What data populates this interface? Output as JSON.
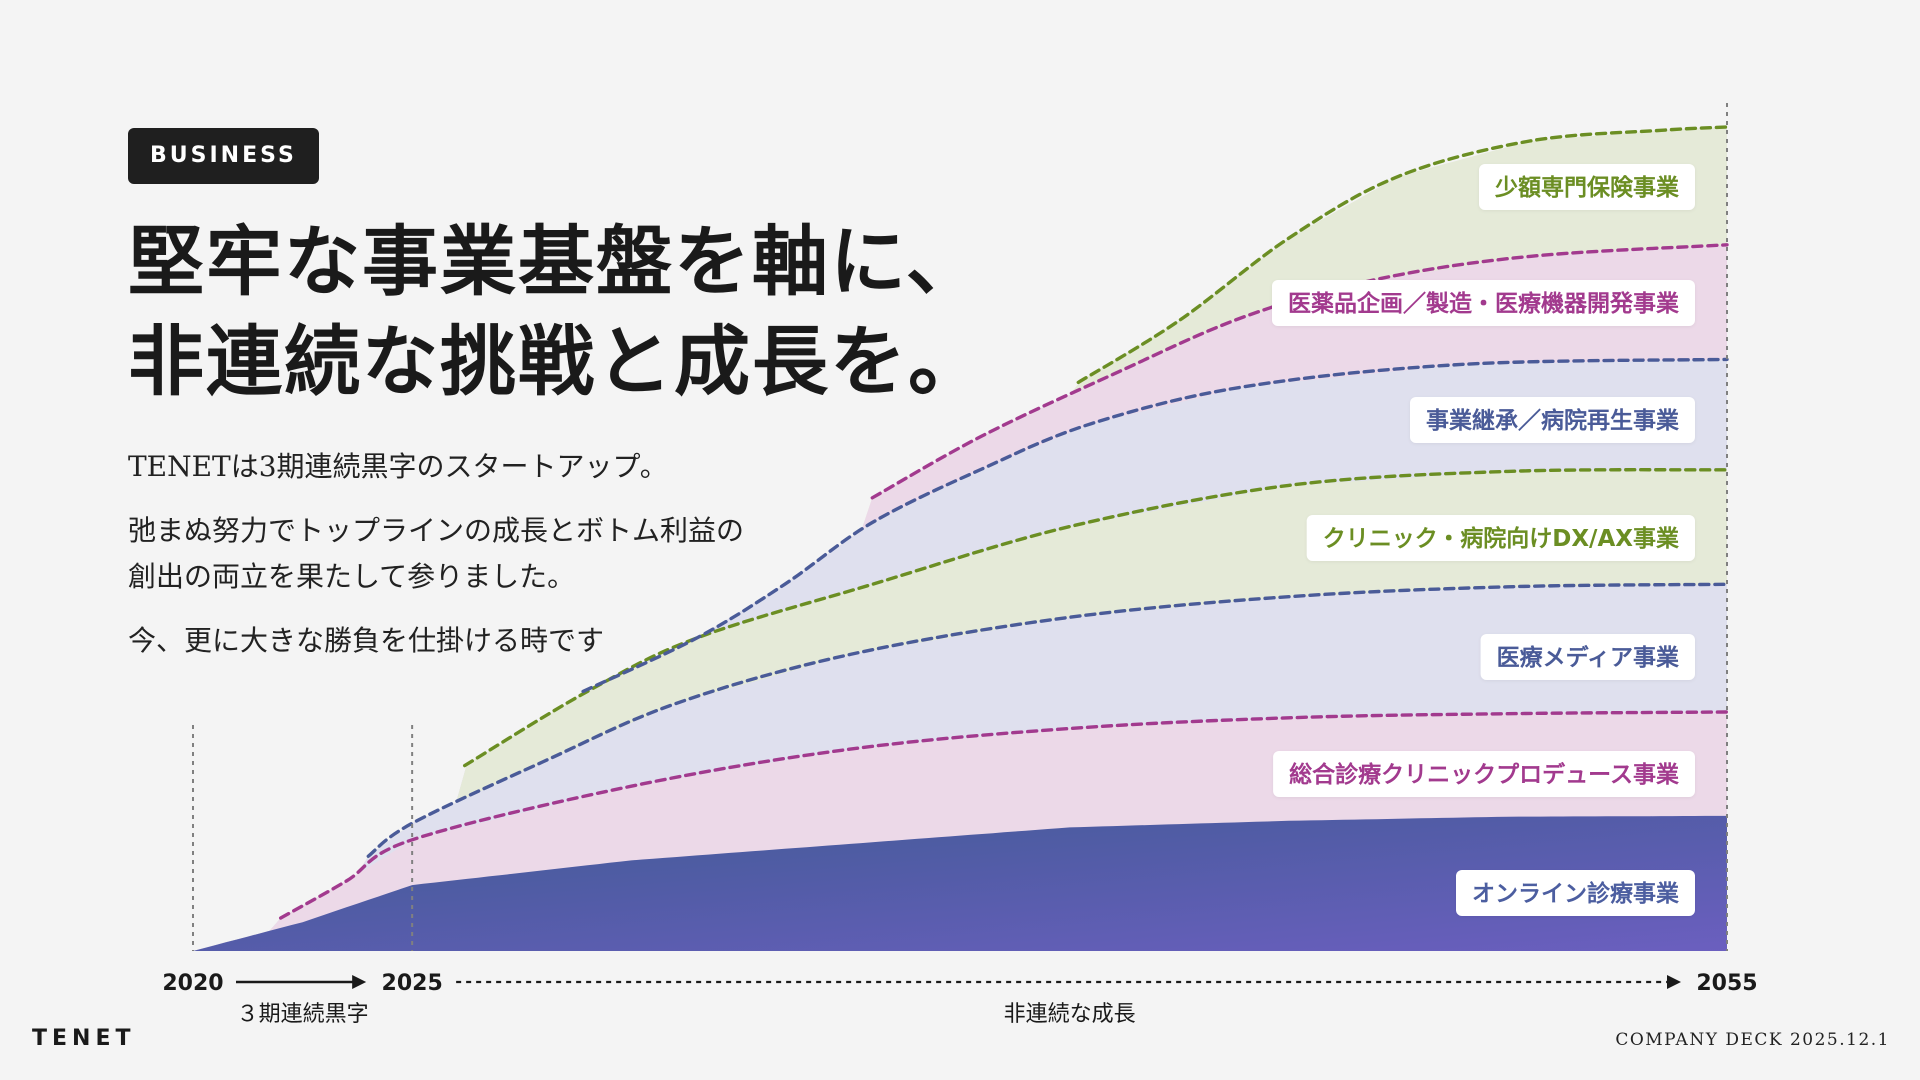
{
  "page": {
    "badge": "BUSINESS",
    "headline": [
      "堅牢な事業基盤を軸に、",
      "非連続な挑戦と成長を。"
    ],
    "paragraphs": [
      [
        "TENETは3期連続黒字のスタートアップ。"
      ],
      [
        "弛まぬ努力でトップラインの成長とボトム利益の",
        "創出の両立を果たして参りました。"
      ],
      [
        "今、更に大きな勝負を仕掛ける時です"
      ]
    ],
    "logo": "TENET",
    "footer": "COMPANY DECK 2025.12.1"
  },
  "chart_data": {
    "type": "area",
    "title": "",
    "x_ticks": [
      "2020",
      "2025",
      "2055"
    ],
    "x_range": [
      2020,
      2055
    ],
    "y_range": [
      0,
      100
    ],
    "phases": [
      {
        "label": "３期連続黒字",
        "from": "2020",
        "to": "2025"
      },
      {
        "label": "非連続な成長",
        "from": "2025",
        "to": "2055"
      }
    ],
    "colors": {
      "magenta": "#a23a8e",
      "blue": "#4a5b98",
      "green": "#6b8e23"
    },
    "series": [
      {
        "name": "オンライン診療事業",
        "color": "#4c5ea0",
        "start": 2020,
        "values": [
          [
            2020,
            0
          ],
          [
            2022.5,
            3.5
          ],
          [
            2025,
            8
          ],
          [
            2030,
            11
          ],
          [
            2035,
            13
          ],
          [
            2040,
            15
          ],
          [
            2045,
            15.8
          ],
          [
            2050,
            16.3
          ],
          [
            2055,
            16.4
          ]
        ]
      },
      {
        "name": "総合診療クリニックプロデュース事業",
        "color": "#a23a8e",
        "start": 2022,
        "values": [
          [
            2022,
            4
          ],
          [
            2023.5,
            8.5
          ],
          [
            2025,
            13.5
          ],
          [
            2030,
            20
          ],
          [
            2035,
            24.5
          ],
          [
            2040,
            27
          ],
          [
            2045,
            28.3
          ],
          [
            2050,
            28.8
          ],
          [
            2055,
            29
          ]
        ]
      },
      {
        "name": "医療メディア事業",
        "color": "#4a5b98",
        "start": 2024,
        "values": [
          [
            2024,
            11.5
          ],
          [
            2025,
            15.5
          ],
          [
            2028,
            23
          ],
          [
            2031,
            30
          ],
          [
            2035,
            36
          ],
          [
            2040,
            40.5
          ],
          [
            2045,
            43
          ],
          [
            2050,
            44.2
          ],
          [
            2055,
            44.5
          ]
        ]
      },
      {
        "name": "クリニック・病院向けDX/AX事業",
        "color": "#6b8e23",
        "start": 2026.2,
        "values": [
          [
            2026.2,
            22.5
          ],
          [
            2029,
            31.5
          ],
          [
            2031.5,
            38
          ],
          [
            2035.5,
            44.5
          ],
          [
            2040,
            51.5
          ],
          [
            2045,
            56.5
          ],
          [
            2050,
            58.2
          ],
          [
            2055,
            58.4
          ]
        ]
      },
      {
        "name": "事業継承／病院再生事業",
        "color": "#4a5b98",
        "start": 2028.9,
        "values": [
          [
            2028.9,
            31.5
          ],
          [
            2031.5,
            38
          ],
          [
            2033.5,
            44.5
          ],
          [
            2035.5,
            52
          ],
          [
            2038,
            58.5
          ],
          [
            2040.5,
            64
          ],
          [
            2044,
            68.5
          ],
          [
            2049,
            71.2
          ],
          [
            2055,
            71.8
          ]
        ]
      },
      {
        "name": "医薬品企画／製造・医療機器開発事業",
        "color": "#a23a8e",
        "start": 2035.5,
        "values": [
          [
            2035.5,
            55
          ],
          [
            2038,
            62.5
          ],
          [
            2041,
            70
          ],
          [
            2044,
            77
          ],
          [
            2047,
            81.5
          ],
          [
            2050.5,
            84.3
          ],
          [
            2055,
            85.7
          ]
        ]
      },
      {
        "name": "少額専門保険事業",
        "color": "#6b8e23",
        "start": 2040.2,
        "values": [
          [
            2040.2,
            69
          ],
          [
            2042.5,
            76.5
          ],
          [
            2045,
            86.5
          ],
          [
            2047.5,
            94
          ],
          [
            2050.5,
            98.3
          ],
          [
            2053.5,
            99.6
          ],
          [
            2055,
            100
          ]
        ]
      }
    ]
  }
}
